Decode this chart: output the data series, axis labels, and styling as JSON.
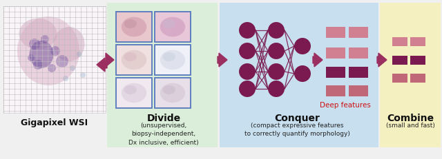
{
  "bg_color": "#f0f0f0",
  "section_colors": {
    "divide": "#daeeda",
    "conquer": "#c8dff0",
    "combine": "#f5f0c0"
  },
  "arrow_color": "#9b3060",
  "title": "Gigapixel WSI",
  "divide_title": "Divide",
  "conquer_title": "Conquer",
  "combine_title": "Combine",
  "divide_subtitle": "(unsupervised,\nbiopsy-independent,\nDx inclusive, efficient)",
  "conquer_subtitle": "(compact expressive features\nto correctly quantify morphology)",
  "combine_subtitle": "(small and fast)",
  "deep_features_label": "Deep features",
  "node_color": "#7a1a50",
  "patch_border_color": "#5577bb",
  "grid_color": "#bbbbbb",
  "wsi_bg": "#f8f4f8",
  "feature_bar_light": "#d08090",
  "feature_bar_dark": "#7a1a50",
  "feature_bar_mid": "#c06878"
}
